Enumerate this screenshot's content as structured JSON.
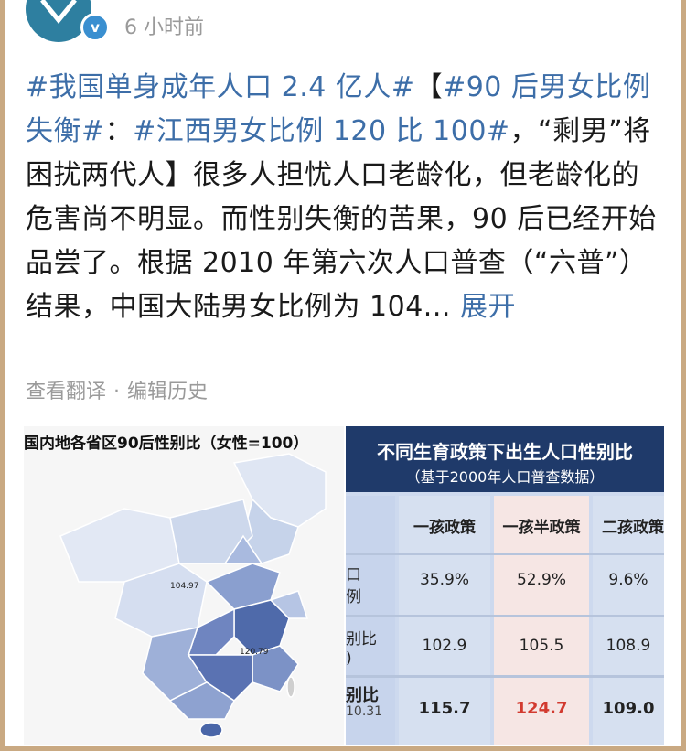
{
  "header": {
    "time": "6 小时前",
    "verified_badge": "v"
  },
  "post": {
    "tag1": "#我国单身成年人口 2.4 亿人#",
    "bracket_open": "【",
    "tag2": "#90 后男女比例失衡#",
    "colon": "：",
    "tag3": "#江西男女比例 120 比 100#",
    "body": "，“剩男”将困扰两代人】很多人担忧人口老龄化，但老龄化的危害尚不明显。而性别失衡的苦果，90 后已经开始品尝了。根据 2010 年第六次人口普查（“六普”）结果，中国大陆男女比例为 104...",
    "expand": "展开"
  },
  "meta": {
    "translate": "查看翻译",
    "separator": "·",
    "edit_history": "编辑历史"
  },
  "map_image": {
    "title": "国内地各省区90后性别比（女性=100）",
    "label_a": "104.97",
    "label_b": "120.79"
  },
  "table_image": {
    "title": "不同生育政策下出生人口性别比",
    "subtitle": "（基于2000年人口普查数据）",
    "columns": [
      "一孩政策",
      "一孩半政策",
      "二孩政策"
    ],
    "row_labels": [
      {
        "a": "口",
        "b": "例"
      },
      {
        "a": "别比",
        "b": ")"
      },
      {
        "a": "别比",
        "b": "10.31"
      }
    ],
    "rows": [
      [
        "35.9%",
        "52.9%",
        "9.6%"
      ],
      [
        "102.9",
        "105.5",
        "108.9"
      ],
      [
        "115.7",
        "124.7",
        "109.0"
      ]
    ]
  }
}
